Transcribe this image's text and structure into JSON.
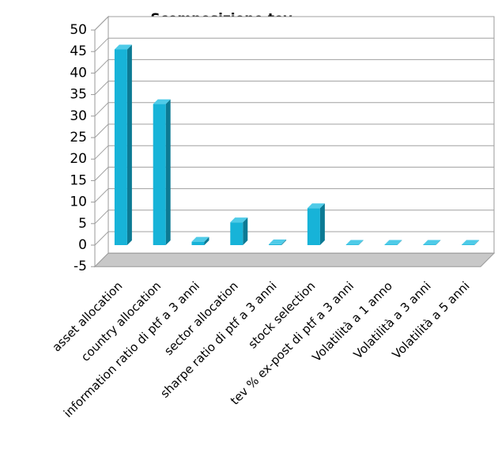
{
  "chart_data": {
    "type": "bar3d",
    "title": "Scomposizione tev",
    "categories": [
      "asset allocation",
      "country allocation",
      "information ratio di ptf a 3 anni",
      "sector allocation",
      "sharpe ratio di ptf a 3 anni",
      "stock selection",
      "tev % ex-post di ptf a 3 anni",
      "Volatilità a 1 anno",
      "Volatilità a 3 anni",
      "Volatilità a 5 anni"
    ],
    "values": [
      45.5,
      32.8,
      0.8,
      5.3,
      0.2,
      8.6,
      0.1,
      0.1,
      0.1,
      0.1
    ],
    "color": "#17b3d8",
    "ylim": [
      -5,
      50
    ],
    "yticks": [
      -5,
      0,
      5,
      10,
      15,
      20,
      25,
      30,
      35,
      40,
      45,
      50
    ],
    "grid": true
  }
}
